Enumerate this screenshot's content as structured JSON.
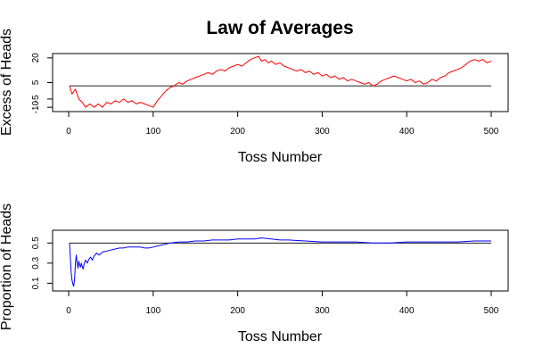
{
  "chart_data": [
    {
      "type": "line",
      "title": "Law of Averages",
      "xlabel": "Toss Number",
      "ylabel": "Excess of Heads",
      "xlim": [
        1,
        500
      ],
      "ylim": [
        -11,
        21
      ],
      "xticks": [
        0,
        100,
        200,
        300,
        400,
        500
      ],
      "yticks": [
        -10,
        -5,
        5,
        20
      ],
      "ytick_labels": [
        "-10",
        "-5",
        "5",
        "20"
      ],
      "reference_line": 3,
      "grid": false,
      "series": [
        {
          "color": "#ff0000",
          "x": [
            1,
            4,
            8,
            12,
            16,
            20,
            25,
            30,
            35,
            40,
            45,
            50,
            55,
            60,
            65,
            70,
            75,
            80,
            85,
            90,
            95,
            100,
            105,
            110,
            115,
            120,
            125,
            130,
            135,
            140,
            145,
            150,
            155,
            160,
            165,
            170,
            175,
            180,
            185,
            190,
            195,
            200,
            205,
            210,
            215,
            220,
            225,
            228,
            232,
            236,
            240,
            245,
            250,
            255,
            260,
            265,
            270,
            275,
            280,
            285,
            290,
            295,
            300,
            305,
            310,
            315,
            320,
            325,
            330,
            335,
            340,
            345,
            350,
            355,
            360,
            365,
            370,
            375,
            380,
            385,
            390,
            395,
            400,
            405,
            410,
            415,
            420,
            425,
            430,
            435,
            440,
            445,
            450,
            455,
            460,
            465,
            470,
            475,
            480,
            485,
            490,
            495,
            500
          ],
          "y": [
            3,
            -2,
            1,
            -5,
            -7,
            -10,
            -8,
            -10,
            -8,
            -10,
            -7,
            -8,
            -6,
            -7,
            -5,
            -7,
            -6,
            -8,
            -7,
            -8,
            -9,
            -10,
            -6,
            -3,
            0,
            2,
            3,
            5,
            4,
            6,
            7,
            8,
            9,
            10,
            11,
            10,
            12,
            13,
            12,
            14,
            15,
            16,
            15,
            17,
            19,
            20,
            21,
            18,
            19,
            17,
            18,
            16,
            17,
            15,
            14,
            13,
            12,
            13,
            11,
            12,
            10,
            11,
            9,
            10,
            8,
            9,
            7,
            8,
            6,
            7,
            6,
            5,
            4,
            5,
            3,
            4,
            6,
            7,
            8,
            9,
            8,
            7,
            6,
            7,
            5,
            6,
            4,
            5,
            7,
            6,
            8,
            9,
            11,
            12,
            13,
            14,
            16,
            18,
            19,
            18,
            19,
            17,
            18
          ]
        }
      ]
    },
    {
      "type": "line",
      "title": "",
      "xlabel": "Toss Number",
      "ylabel": "Proportion of Heads",
      "xlim": [
        1,
        500
      ],
      "ylim": [
        0.05,
        0.6
      ],
      "xticks": [
        0,
        100,
        200,
        300,
        400,
        500
      ],
      "yticks": [
        0.1,
        0.3,
        0.5
      ],
      "ytick_labels": [
        "0.1",
        "0.3",
        "0.5"
      ],
      "reference_line": 0.5,
      "grid": false,
      "series": [
        {
          "color": "#0000ff",
          "x": [
            1,
            2,
            3,
            4,
            5,
            6,
            7,
            8,
            9,
            10,
            11,
            12,
            13,
            14,
            15,
            16,
            17,
            18,
            19,
            20,
            22,
            24,
            26,
            28,
            30,
            33,
            36,
            40,
            45,
            50,
            55,
            60,
            65,
            70,
            75,
            80,
            85,
            90,
            95,
            100,
            110,
            120,
            130,
            140,
            150,
            160,
            170,
            180,
            190,
            200,
            210,
            220,
            228,
            240,
            250,
            260,
            280,
            300,
            320,
            340,
            360,
            380,
            400,
            420,
            440,
            460,
            480,
            500
          ],
          "y": [
            0.5,
            0.35,
            0.2,
            0.13,
            0.09,
            0.07,
            0.15,
            0.3,
            0.38,
            0.3,
            0.25,
            0.32,
            0.28,
            0.26,
            0.3,
            0.27,
            0.24,
            0.28,
            0.31,
            0.33,
            0.3,
            0.34,
            0.36,
            0.33,
            0.37,
            0.4,
            0.38,
            0.41,
            0.42,
            0.43,
            0.44,
            0.45,
            0.45,
            0.46,
            0.46,
            0.46,
            0.46,
            0.45,
            0.45,
            0.46,
            0.48,
            0.5,
            0.51,
            0.51,
            0.52,
            0.52,
            0.53,
            0.53,
            0.53,
            0.54,
            0.54,
            0.54,
            0.55,
            0.54,
            0.53,
            0.53,
            0.52,
            0.51,
            0.51,
            0.51,
            0.5,
            0.5,
            0.51,
            0.51,
            0.51,
            0.51,
            0.52,
            0.52
          ]
        }
      ]
    }
  ]
}
